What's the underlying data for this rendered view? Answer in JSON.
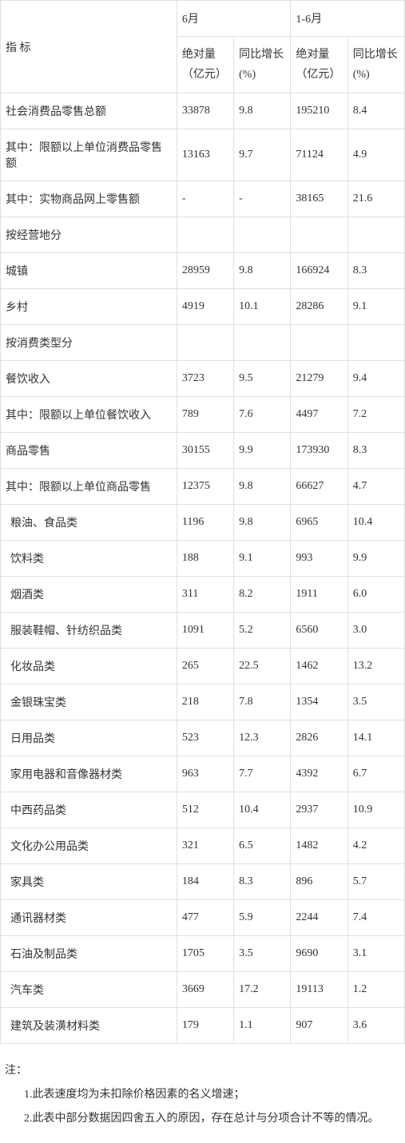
{
  "headers": {
    "indicator": "指 标",
    "month": "6月",
    "cumulative": "1-6月",
    "absolute": "绝对量",
    "unit": "（亿元）",
    "yoy": "同比增长(%)"
  },
  "rows": [
    {
      "label": "社会消费品零售总额",
      "m_abs": "33878",
      "m_yoy": "9.8",
      "c_abs": "195210",
      "c_yoy": "8.4",
      "indent": false
    },
    {
      "label": "其中：限额以上单位消费品零售额",
      "m_abs": "13163",
      "m_yoy": "9.7",
      "c_abs": "71124",
      "c_yoy": "4.9",
      "indent": false
    },
    {
      "label": "其中：实物商品网上零售额",
      "m_abs": "-",
      "m_yoy": "-",
      "c_abs": "38165",
      "c_yoy": "21.6",
      "indent": false
    },
    {
      "label": "按经营地分",
      "m_abs": "",
      "m_yoy": "",
      "c_abs": "",
      "c_yoy": "",
      "indent": false
    },
    {
      "label": "城镇",
      "m_abs": "28959",
      "m_yoy": "9.8",
      "c_abs": "166924",
      "c_yoy": "8.3",
      "indent": false
    },
    {
      "label": "乡村",
      "m_abs": "4919",
      "m_yoy": "10.1",
      "c_abs": "28286",
      "c_yoy": "9.1",
      "indent": false
    },
    {
      "label": "按消费类型分",
      "m_abs": "",
      "m_yoy": "",
      "c_abs": "",
      "c_yoy": "",
      "indent": false
    },
    {
      "label": "餐饮收入",
      "m_abs": "3723",
      "m_yoy": "9.5",
      "c_abs": "21279",
      "c_yoy": "9.4",
      "indent": false
    },
    {
      "label": "其中：限额以上单位餐饮收入",
      "m_abs": "789",
      "m_yoy": "7.6",
      "c_abs": "4497",
      "c_yoy": "7.2",
      "indent": false
    },
    {
      "label": "商品零售",
      "m_abs": "30155",
      "m_yoy": "9.9",
      "c_abs": "173930",
      "c_yoy": "8.3",
      "indent": false
    },
    {
      "label": "其中：限额以上单位商品零售",
      "m_abs": "12375",
      "m_yoy": "9.8",
      "c_abs": "66627",
      "c_yoy": "4.7",
      "indent": false
    },
    {
      "label": "粮油、食品类",
      "m_abs": "1196",
      "m_yoy": "9.8",
      "c_abs": "6965",
      "c_yoy": "10.4",
      "indent": true
    },
    {
      "label": "饮料类",
      "m_abs": "188",
      "m_yoy": "9.1",
      "c_abs": "993",
      "c_yoy": "9.9",
      "indent": true
    },
    {
      "label": "烟酒类",
      "m_abs": "311",
      "m_yoy": "8.2",
      "c_abs": "1911",
      "c_yoy": "6.0",
      "indent": true
    },
    {
      "label": "服装鞋帽、针纺织品类",
      "m_abs": "1091",
      "m_yoy": "5.2",
      "c_abs": "6560",
      "c_yoy": "3.0",
      "indent": true
    },
    {
      "label": "化妆品类",
      "m_abs": "265",
      "m_yoy": "22.5",
      "c_abs": "1462",
      "c_yoy": "13.2",
      "indent": true
    },
    {
      "label": "金银珠宝类",
      "m_abs": "218",
      "m_yoy": "7.8",
      "c_abs": "1354",
      "c_yoy": "3.5",
      "indent": true
    },
    {
      "label": "日用品类",
      "m_abs": "523",
      "m_yoy": "12.3",
      "c_abs": "2826",
      "c_yoy": "14.1",
      "indent": true
    },
    {
      "label": "家用电器和音像器材类",
      "m_abs": "963",
      "m_yoy": "7.7",
      "c_abs": "4392",
      "c_yoy": "6.7",
      "indent": true
    },
    {
      "label": "中西药品类",
      "m_abs": "512",
      "m_yoy": "10.4",
      "c_abs": "2937",
      "c_yoy": "10.9",
      "indent": true
    },
    {
      "label": "文化办公用品类",
      "m_abs": "321",
      "m_yoy": "6.5",
      "c_abs": "1482",
      "c_yoy": "4.2",
      "indent": true
    },
    {
      "label": "家具类",
      "m_abs": "184",
      "m_yoy": "8.3",
      "c_abs": "896",
      "c_yoy": "5.7",
      "indent": true
    },
    {
      "label": "通讯器材类",
      "m_abs": "477",
      "m_yoy": "5.9",
      "c_abs": "2244",
      "c_yoy": "7.4",
      "indent": true
    },
    {
      "label": "石油及制品类",
      "m_abs": "1705",
      "m_yoy": "3.5",
      "c_abs": "9690",
      "c_yoy": "3.1",
      "indent": true
    },
    {
      "label": "汽车类",
      "m_abs": "3669",
      "m_yoy": "17.2",
      "c_abs": "19113",
      "c_yoy": "1.2",
      "indent": true
    },
    {
      "label": "建筑及装潢材料类",
      "m_abs": "179",
      "m_yoy": "1.1",
      "c_abs": "907",
      "c_yoy": "3.6",
      "indent": true
    }
  ],
  "notes": {
    "title": "注：",
    "items": [
      "1.此表速度均为未扣除价格因素的名义增速；",
      "2.此表中部分数据因四舍五入的原因，存在总计与分项合计不等的情况。"
    ]
  }
}
